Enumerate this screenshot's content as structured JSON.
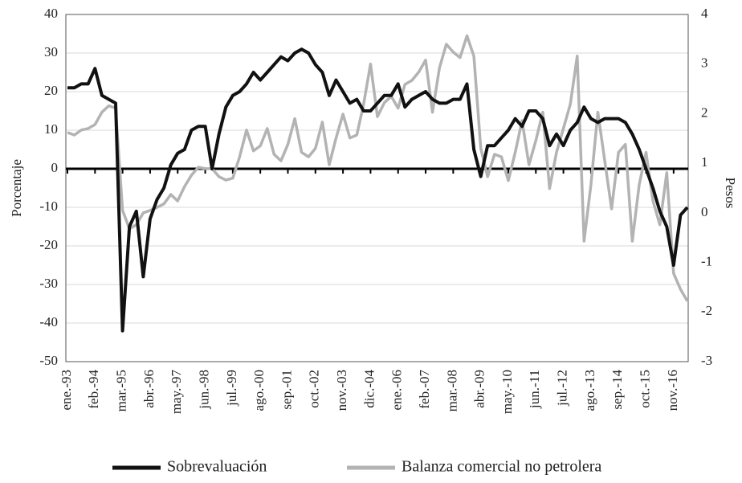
{
  "chart_data": {
    "type": "line",
    "y_label": "Porcentaje",
    "y2_label": "Pesos",
    "categories": [
      "ene.-93",
      null,
      null,
      null,
      "feb.-94",
      null,
      null,
      null,
      "mar.-95",
      null,
      null,
      null,
      "abr.-96",
      null,
      null,
      null,
      "may.-97",
      null,
      null,
      null,
      "jun.-98",
      null,
      null,
      null,
      "jul.-99",
      null,
      null,
      null,
      "ago.-00",
      null,
      null,
      null,
      "sep.-01",
      null,
      null,
      null,
      "oct.-02",
      null,
      null,
      null,
      "nov.-03",
      null,
      null,
      null,
      "dic.-04",
      null,
      null,
      null,
      "ene.-06",
      null,
      null,
      null,
      "feb.-07",
      null,
      null,
      null,
      "mar.-08",
      null,
      null,
      null,
      "abr.-09",
      null,
      null,
      null,
      "may.-10",
      null,
      null,
      null,
      "jun.-11",
      null,
      null,
      null,
      "jul.-12",
      null,
      null,
      null,
      "ago.-13",
      null,
      null,
      null,
      "sep.-14",
      null,
      null,
      null,
      "oct.-15",
      null,
      null,
      null,
      "nov.-16",
      null,
      null
    ],
    "series": [
      {
        "name": "Sobrevaluación",
        "color": "#111111",
        "axis": "y",
        "values": [
          21,
          21,
          22,
          22,
          26,
          19,
          18,
          17,
          -42,
          -15,
          -11,
          -28,
          -13,
          -8,
          -5,
          1,
          4,
          5,
          10,
          11,
          11,
          0,
          9,
          16,
          19,
          20,
          22,
          25,
          23,
          25,
          27,
          29,
          28,
          30,
          31,
          30,
          27,
          25,
          19,
          23,
          20,
          17,
          18,
          15,
          15,
          17,
          19,
          19,
          22,
          16,
          18,
          19,
          20,
          18,
          17,
          17,
          18,
          18,
          22,
          5,
          -2,
          6,
          6,
          8,
          10,
          13,
          11,
          15,
          15,
          13,
          6,
          9,
          6,
          10,
          12,
          16,
          13,
          12,
          13,
          13,
          13,
          12,
          9,
          5,
          0,
          -5,
          -11,
          -15,
          -25,
          -12,
          -10
        ]
      },
      {
        "name": "Balanza comercial no petrolera",
        "color": "#b3b3b3",
        "axis": "y2",
        "values": [
          1.62,
          1.57,
          1.67,
          1.7,
          1.78,
          2.03,
          2.16,
          2.11,
          0.05,
          -0.32,
          -0.24,
          0,
          0.05,
          0.11,
          0.18,
          0.37,
          0.24,
          0.53,
          0.76,
          0.92,
          0.89,
          0.89,
          0.73,
          0.66,
          0.7,
          1.13,
          1.67,
          1.25,
          1.35,
          1.7,
          1.18,
          1.05,
          1.38,
          1.9,
          1.22,
          1.13,
          1.3,
          1.83,
          0.97,
          1.51,
          1.99,
          1.51,
          1.57,
          2.19,
          3.0,
          1.94,
          2.22,
          2.35,
          2.11,
          2.59,
          2.67,
          2.84,
          3.08,
          2.03,
          2.92,
          3.4,
          3.24,
          3.13,
          3.57,
          3.16,
          1.3,
          0.73,
          1.18,
          1.13,
          0.65,
          1.22,
          1.86,
          0.97,
          1.46,
          2.03,
          0.49,
          1.22,
          1.7,
          2.19,
          3.16,
          -0.57,
          0.57,
          2.03,
          1.05,
          0.08,
          1.22,
          1.38,
          -0.57,
          0.57,
          1.22,
          0.24,
          -0.24,
          0.81,
          -1.22,
          -1.54,
          -1.78
        ]
      }
    ],
    "ylim": [
      -50,
      40
    ],
    "yticks": [
      -50,
      -40,
      -30,
      -20,
      -10,
      0,
      10,
      20,
      30,
      40
    ],
    "y2lim": [
      -3,
      4
    ],
    "y2ticks": [
      -3,
      -2,
      -1,
      0,
      1,
      2,
      3,
      4
    ],
    "grid": true,
    "legend": "bottom"
  }
}
